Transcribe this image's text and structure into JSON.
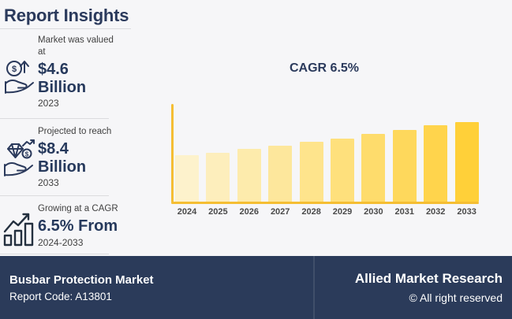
{
  "header": {
    "title": "Report Insights"
  },
  "stats": [
    {
      "icon": "coin-growth-hand-icon",
      "label": "Market was valued\nat",
      "value": "$4.6\nBillion",
      "period": "2023"
    },
    {
      "icon": "diamond-hand-icon",
      "label": "Projected to reach",
      "value": "$8.4\nBillion",
      "period": "2033"
    },
    {
      "icon": "growth-bars-icon",
      "label": "Growing at a CAGR",
      "value": "6.5% From",
      "period": "2024-2033"
    }
  ],
  "chart_data": {
    "type": "bar",
    "title": "CAGR 6.5%",
    "categories": [
      "2024",
      "2025",
      "2026",
      "2027",
      "2028",
      "2029",
      "2030",
      "2031",
      "2032",
      "2033"
    ],
    "values": [
      4.9,
      5.2,
      5.6,
      5.9,
      6.3,
      6.7,
      7.2,
      7.6,
      8.1,
      8.4
    ],
    "xlabel": "",
    "ylabel": "",
    "ylim": [
      0,
      10
    ],
    "grid": false,
    "legend": false,
    "axis_color": "#F5BE33",
    "bar_colors": [
      "#FDF2CC",
      "#FDEEBC",
      "#FDEBAC",
      "#FDE79C",
      "#FEE48C",
      "#FEE07C",
      "#FEDC6C",
      "#FED85C",
      "#FFD44C",
      "#FFD039"
    ]
  },
  "footer": {
    "report_name": "Busbar Protection Market",
    "report_code": "Report Code: A13801",
    "brand": "Allied Market Research",
    "copyright": "© All right reserved"
  },
  "colors": {
    "navy_text": "#2B3A5C",
    "footer_background": "#2B3B5A",
    "page_background": "#F6F6F8",
    "axis_gold": "#F5BE33"
  }
}
